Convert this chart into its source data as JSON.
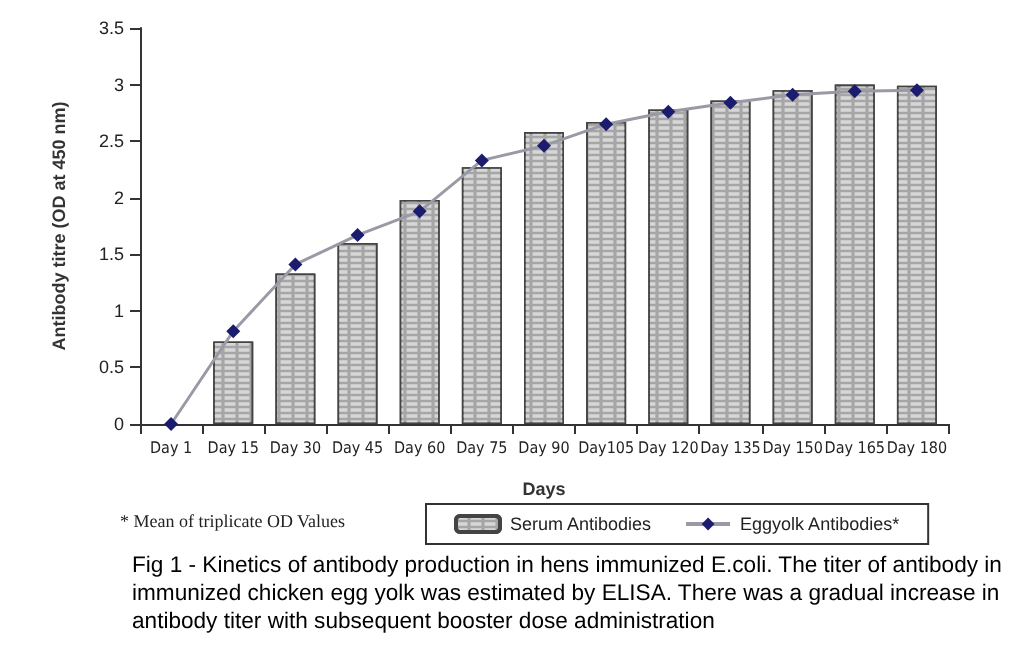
{
  "chart_data": {
    "type": "bar",
    "categories": [
      "Day 1",
      "Day 15",
      "Day 30",
      "Day 45",
      "Day 60",
      "Day 75",
      "Day 90",
      "Day105",
      "Day 120",
      "Day 135",
      "Day 150",
      "Day 165",
      "Day 180"
    ],
    "series": [
      {
        "name": "Serum Antibodies",
        "color": "#a6a6a6",
        "values": [
          0,
          0.73,
          1.33,
          1.6,
          1.98,
          2.27,
          2.58,
          2.67,
          2.78,
          2.86,
          2.95,
          3.0,
          2.99
        ]
      },
      {
        "name": "Eggyolk Antibodies*",
        "type": "line",
        "color": "#1c1c6e",
        "values": [
          0,
          0.82,
          1.41,
          1.67,
          1.88,
          2.33,
          2.46,
          2.65,
          2.76,
          2.84,
          2.91,
          2.94,
          2.95
        ]
      }
    ],
    "xlabel": "Days",
    "ylabel": "Antibody titre (OD at 450 nm)",
    "ylim": [
      0,
      3.5
    ],
    "yticks": [
      0,
      0.5,
      1,
      1.5,
      2,
      2.5,
      3,
      3.5
    ],
    "grid": false,
    "legend": "bottom",
    "marker": "diamond",
    "line_style": "solid",
    "annotations": [
      "* Mean of triplicate OD Values",
      "Fig 1 - Kinetics of antibody production in hens immunized E.coli. The titer of antibody in immunized chicken egg yolk was estimated by ELISA. There was a gradual increase in antibody titer with subsequent booster dose administration"
    ]
  }
}
